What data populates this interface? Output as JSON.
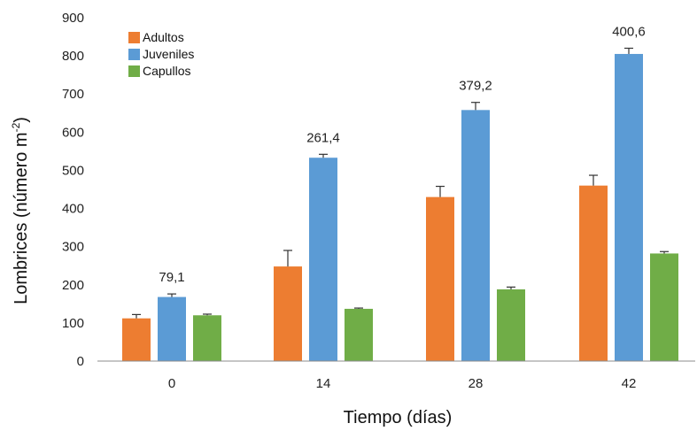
{
  "chart_data": {
    "type": "bar",
    "categories": [
      "0",
      "14",
      "28",
      "42"
    ],
    "series": [
      {
        "name": "Adultos",
        "color": "#ED7D31",
        "values": [
          112,
          248,
          430,
          460
        ],
        "errors": [
          10,
          42,
          28,
          27
        ]
      },
      {
        "name": "Juveniles",
        "color": "#5B9BD5",
        "values": [
          168,
          533,
          658,
          805
        ],
        "errors": [
          8,
          9,
          20,
          15
        ]
      },
      {
        "name": "Capullos",
        "color": "#70AD47",
        "values": [
          120,
          137,
          188,
          282
        ],
        "errors": [
          3,
          2,
          6,
          5
        ]
      }
    ],
    "annotations": [
      {
        "category": "0",
        "text": "79,1"
      },
      {
        "category": "14",
        "text": "261,4"
      },
      {
        "category": "28",
        "text": "379,2"
      },
      {
        "category": "42",
        "text": "400,6"
      }
    ],
    "xlabel": "Tiempo (días)",
    "ylabel_main": "Lombrices (número m",
    "ylabel_sup": "-2",
    "ylabel_close": ")",
    "ylim": [
      0,
      900
    ],
    "yticks": [
      0,
      100,
      200,
      300,
      400,
      500,
      600,
      700,
      800,
      900
    ],
    "legend_position": "top-left",
    "grid": false
  }
}
